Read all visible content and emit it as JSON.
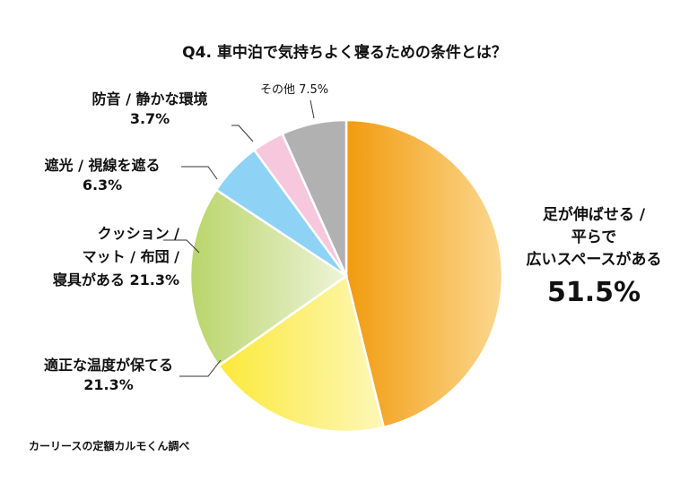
{
  "title": "Q4. 車中泊で気持ちよく寝るための条件とは？",
  "source": "カーリースの定額カルモくん調べ",
  "chart_data": {
    "type": "pie",
    "title": "Q4. 車中泊で気持ちよく寝るための条件とは？",
    "slices": [
      {
        "label_lines": [
          "足が伸ばせる /",
          "平らで",
          "広いスペースがある"
        ],
        "value": 51.5,
        "value_text": "51.5%",
        "color_from": "#F29B0F",
        "color_to": "#FBD88F"
      },
      {
        "label_lines": [
          "適正な温度が保てる"
        ],
        "value": 21.3,
        "value_text": "21.3%",
        "color_from": "#FCE93A",
        "color_to": "#FDF7B8"
      },
      {
        "label_lines": [
          "クッション /",
          "マット / 布団 /",
          "寝具がある 21.3%"
        ],
        "value": 21.3,
        "value_text": "",
        "color_from": "#B9D56A",
        "color_to": "#EEF4D8"
      },
      {
        "label_lines": [
          "遮光 / 視線を遮る"
        ],
        "value": 6.3,
        "value_text": "6.3%",
        "color_from": "#8ED3F5",
        "color_to": "#8ED3F5"
      },
      {
        "label_lines": [
          "防音 / 静かな環境"
        ],
        "value": 3.7,
        "value_text": "3.7%",
        "color_from": "#F6C7DD",
        "color_to": "#F6C7DD"
      },
      {
        "label_lines": [
          "その他 7.5%"
        ],
        "value": 7.5,
        "value_text": "",
        "color_from": "#B1B1B1",
        "color_to": "#B1B1B1"
      }
    ]
  }
}
